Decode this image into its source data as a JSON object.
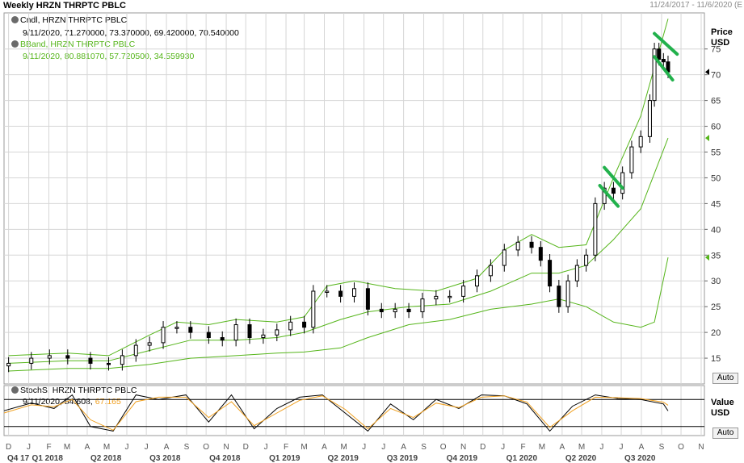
{
  "header": {
    "title": "Weekly HRZN THRPTC PBLC",
    "date_range": "11/24/2017 - 11/6/2020 (E"
  },
  "legend": {
    "candle_label": "Cndl, HRZN THRPTC PBLC",
    "candle_values": "9/11/2020, 71.270000, 73.370000, 69.420000, 70.540000",
    "bband_label": "BBand, HRZN THRPTC PBLC",
    "bband_values": "9/11/2020, 80.881070, 57.720500, 34.559930",
    "stoch_label": "StochS, HRZN THRPTC PBLC",
    "stoch_k": "9/11/2020, 54.608,",
    "stoch_d": "67.165"
  },
  "axes": {
    "price_unit_1": "Price",
    "price_unit_2": "USD",
    "value_unit_1": "Value",
    "value_unit_2": "USD",
    "auto_label": "Auto"
  },
  "colors": {
    "candle": "#000000",
    "bband": "#55b51a",
    "stoch_k": "#000000",
    "stoch_d": "#f0a020",
    "trendline": "#22b14c",
    "grid": "#d6d6d6"
  },
  "chart_data": [
    {
      "type": "candlestick",
      "title": "Weekly HRZN THRPTC PBLC",
      "ylabel": "Price USD",
      "y_ticks": [
        15,
        20,
        25,
        30,
        35,
        40,
        45,
        50,
        55,
        60,
        65,
        70,
        75
      ],
      "ylim": [
        10,
        82
      ],
      "x_start": "2017-11-24",
      "x_end": "2020-11-06",
      "month_ticks": [
        "D",
        "J",
        "F",
        "M",
        "A",
        "M",
        "J",
        "J",
        "A",
        "S",
        "O",
        "N",
        "D",
        "J",
        "F",
        "M",
        "A",
        "M",
        "J",
        "J",
        "A",
        "S",
        "O",
        "N",
        "D",
        "J",
        "F",
        "M",
        "A",
        "M",
        "J",
        "J",
        "A",
        "S",
        "O",
        "N"
      ],
      "quarter_labels": [
        "Q4 17",
        "Q1 2018",
        "Q2 2018",
        "Q3 2018",
        "Q4 2018",
        "Q1 2019",
        "Q2 2019",
        "Q3 2019",
        "Q4 2019",
        "Q1 2020",
        "Q2 2020",
        "Q3 2020"
      ],
      "last_value_markers": [
        70.54,
        57.72,
        34.56
      ],
      "close_series": [
        [
          "2017-12-01",
          14.0
        ],
        [
          "2018-01-05",
          15.0
        ],
        [
          "2018-02-02",
          15.5
        ],
        [
          "2018-03-02",
          15.0
        ],
        [
          "2018-04-06",
          14.0
        ],
        [
          "2018-05-04",
          13.8
        ],
        [
          "2018-05-25",
          15.5
        ],
        [
          "2018-06-15",
          17.5
        ],
        [
          "2018-07-06",
          18.0
        ],
        [
          "2018-07-27",
          21.0
        ],
        [
          "2018-08-17",
          21.0
        ],
        [
          "2018-09-07",
          20.0
        ],
        [
          "2018-10-05",
          19.0
        ],
        [
          "2018-10-26",
          18.5
        ],
        [
          "2018-11-16",
          21.5
        ],
        [
          "2018-12-07",
          19.0
        ],
        [
          "2018-12-28",
          19.5
        ],
        [
          "2019-01-18",
          20.5
        ],
        [
          "2019-02-08",
          22.0
        ],
        [
          "2019-03-01",
          21.0
        ],
        [
          "2019-03-15",
          28.0
        ],
        [
          "2019-04-05",
          28.0
        ],
        [
          "2019-04-26",
          27.0
        ],
        [
          "2019-05-17",
          28.5
        ],
        [
          "2019-06-07",
          24.5
        ],
        [
          "2019-06-28",
          24.0
        ],
        [
          "2019-07-19",
          24.5
        ],
        [
          "2019-08-09",
          24.0
        ],
        [
          "2019-08-30",
          26.5
        ],
        [
          "2019-09-20",
          27.0
        ],
        [
          "2019-10-11",
          27.0
        ],
        [
          "2019-11-01",
          29.0
        ],
        [
          "2019-11-22",
          31.0
        ],
        [
          "2019-12-13",
          33.0
        ],
        [
          "2020-01-03",
          36.0
        ],
        [
          "2020-01-24",
          37.5
        ],
        [
          "2020-02-14",
          36.5
        ],
        [
          "2020-02-28",
          34.0
        ],
        [
          "2020-03-13",
          29.0
        ],
        [
          "2020-03-27",
          25.0
        ],
        [
          "2020-04-10",
          30.0
        ],
        [
          "2020-04-24",
          33.0
        ],
        [
          "2020-05-08",
          35.0
        ],
        [
          "2020-05-22",
          45.0
        ],
        [
          "2020-06-05",
          48.0
        ],
        [
          "2020-06-19",
          47.0
        ],
        [
          "2020-07-03",
          51.0
        ],
        [
          "2020-07-17",
          56.0
        ],
        [
          "2020-07-31",
          58.0
        ],
        [
          "2020-08-14",
          65.0
        ],
        [
          "2020-08-21",
          75.0
        ],
        [
          "2020-08-28",
          73.0
        ],
        [
          "2020-09-04",
          72.5
        ],
        [
          "2020-09-11",
          70.54
        ]
      ],
      "bband_upper": [
        [
          "2017-12-01",
          15.5
        ],
        [
          "2018-03-02",
          16.0
        ],
        [
          "2018-05-04",
          15.5
        ],
        [
          "2018-07-06",
          19.5
        ],
        [
          "2018-08-17",
          22.0
        ],
        [
          "2018-10-05",
          21.5
        ],
        [
          "2018-11-16",
          22.5
        ],
        [
          "2019-01-18",
          22.0
        ],
        [
          "2019-03-01",
          23.0
        ],
        [
          "2019-04-05",
          29.0
        ],
        [
          "2019-05-17",
          30.0
        ],
        [
          "2019-07-19",
          28.5
        ],
        [
          "2019-09-20",
          28.0
        ],
        [
          "2019-11-22",
          30.5
        ],
        [
          "2020-01-03",
          36.0
        ],
        [
          "2020-02-14",
          39.0
        ],
        [
          "2020-03-27",
          36.5
        ],
        [
          "2020-05-08",
          37.0
        ],
        [
          "2020-06-19",
          50.0
        ],
        [
          "2020-07-31",
          62.0
        ],
        [
          "2020-09-11",
          80.88
        ]
      ],
      "bband_middle": [
        [
          "2017-12-01",
          14.0
        ],
        [
          "2018-03-02",
          14.5
        ],
        [
          "2018-05-04",
          14.5
        ],
        [
          "2018-07-06",
          16.5
        ],
        [
          "2018-09-07",
          18.5
        ],
        [
          "2018-11-16",
          18.5
        ],
        [
          "2019-01-18",
          19.0
        ],
        [
          "2019-03-01",
          20.0
        ],
        [
          "2019-04-26",
          22.5
        ],
        [
          "2019-06-07",
          24.0
        ],
        [
          "2019-08-09",
          25.0
        ],
        [
          "2019-10-11",
          25.5
        ],
        [
          "2019-12-13",
          28.0
        ],
        [
          "2020-02-14",
          31.5
        ],
        [
          "2020-03-27",
          31.5
        ],
        [
          "2020-05-08",
          33.0
        ],
        [
          "2020-06-19",
          38.0
        ],
        [
          "2020-07-31",
          44.0
        ],
        [
          "2020-09-11",
          57.72
        ]
      ],
      "bband_lower": [
        [
          "2017-12-01",
          12.5
        ],
        [
          "2018-03-02",
          13.0
        ],
        [
          "2018-05-04",
          13.0
        ],
        [
          "2018-07-06",
          13.8
        ],
        [
          "2018-09-07",
          15.0
        ],
        [
          "2018-11-16",
          15.5
        ],
        [
          "2019-01-18",
          16.0
        ],
        [
          "2019-03-01",
          16.2
        ],
        [
          "2019-04-26",
          17.0
        ],
        [
          "2019-06-07",
          19.0
        ],
        [
          "2019-08-09",
          21.5
        ],
        [
          "2019-10-11",
          22.5
        ],
        [
          "2019-12-13",
          24.5
        ],
        [
          "2020-02-14",
          25.5
        ],
        [
          "2020-03-27",
          26.5
        ],
        [
          "2020-05-08",
          25.0
        ],
        [
          "2020-06-19",
          22.0
        ],
        [
          "2020-07-31",
          21.0
        ],
        [
          "2020-08-21",
          22.0
        ],
        [
          "2020-09-11",
          34.56
        ]
      ],
      "trendlines": [
        {
          "from": [
            "2020-05-29",
            48.5
          ],
          "to": [
            "2020-06-26",
            44.5
          ]
        },
        {
          "from": [
            "2020-06-05",
            52.0
          ],
          "to": [
            "2020-07-03",
            48.0
          ]
        },
        {
          "from": [
            "2020-08-21",
            78.0
          ],
          "to": [
            "2020-09-25",
            74.0
          ]
        },
        {
          "from": [
            "2020-08-21",
            73.5
          ],
          "to": [
            "2020-09-18",
            69.0
          ]
        }
      ]
    },
    {
      "type": "line",
      "title": "StochS",
      "ylabel": "Value USD",
      "ylim": [
        0,
        100
      ],
      "reference_lines": [
        80,
        20
      ],
      "series": [
        {
          "name": "%K",
          "color": "#000000",
          "last_value": 54.608,
          "x": [
            "2017-11-24",
            "2018-01-05",
            "2018-02-09",
            "2018-03-09",
            "2018-04-06",
            "2018-05-11",
            "2018-06-15",
            "2018-07-20",
            "2018-08-31",
            "2018-10-05",
            "2018-11-09",
            "2018-12-14",
            "2019-01-18",
            "2019-02-22",
            "2019-03-29",
            "2019-05-03",
            "2019-06-07",
            "2019-07-12",
            "2019-08-16",
            "2019-09-20",
            "2019-10-25",
            "2019-11-29",
            "2020-01-03",
            "2020-02-07",
            "2020-03-13",
            "2020-04-17",
            "2020-05-22",
            "2020-06-26",
            "2020-07-31",
            "2020-09-04",
            "2020-09-11"
          ],
          "y": [
            55,
            72,
            60,
            90,
            20,
            10,
            90,
            80,
            90,
            30,
            90,
            15,
            60,
            85,
            90,
            50,
            10,
            70,
            35,
            80,
            60,
            90,
            88,
            70,
            10,
            65,
            90,
            82,
            80,
            70,
            54.608
          ]
        },
        {
          "name": "%D",
          "color": "#f0a020",
          "last_value": 67.165,
          "x": [
            "2017-11-24",
            "2018-01-05",
            "2018-02-09",
            "2018-03-09",
            "2018-04-06",
            "2018-05-11",
            "2018-06-15",
            "2018-07-20",
            "2018-08-31",
            "2018-10-05",
            "2018-11-09",
            "2018-12-14",
            "2019-01-18",
            "2019-02-22",
            "2019-03-29",
            "2019-05-03",
            "2019-06-07",
            "2019-07-12",
            "2019-08-16",
            "2019-09-20",
            "2019-10-25",
            "2019-11-29",
            "2020-01-03",
            "2020-02-07",
            "2020-03-13",
            "2020-04-17",
            "2020-05-22",
            "2020-06-26",
            "2020-07-31",
            "2020-09-04",
            "2020-09-11"
          ],
          "y": [
            50,
            68,
            64,
            80,
            35,
            12,
            75,
            85,
            85,
            40,
            75,
            22,
            50,
            78,
            88,
            58,
            15,
            60,
            40,
            72,
            62,
            85,
            88,
            74,
            18,
            55,
            85,
            84,
            82,
            74,
            67.165
          ]
        }
      ]
    }
  ]
}
